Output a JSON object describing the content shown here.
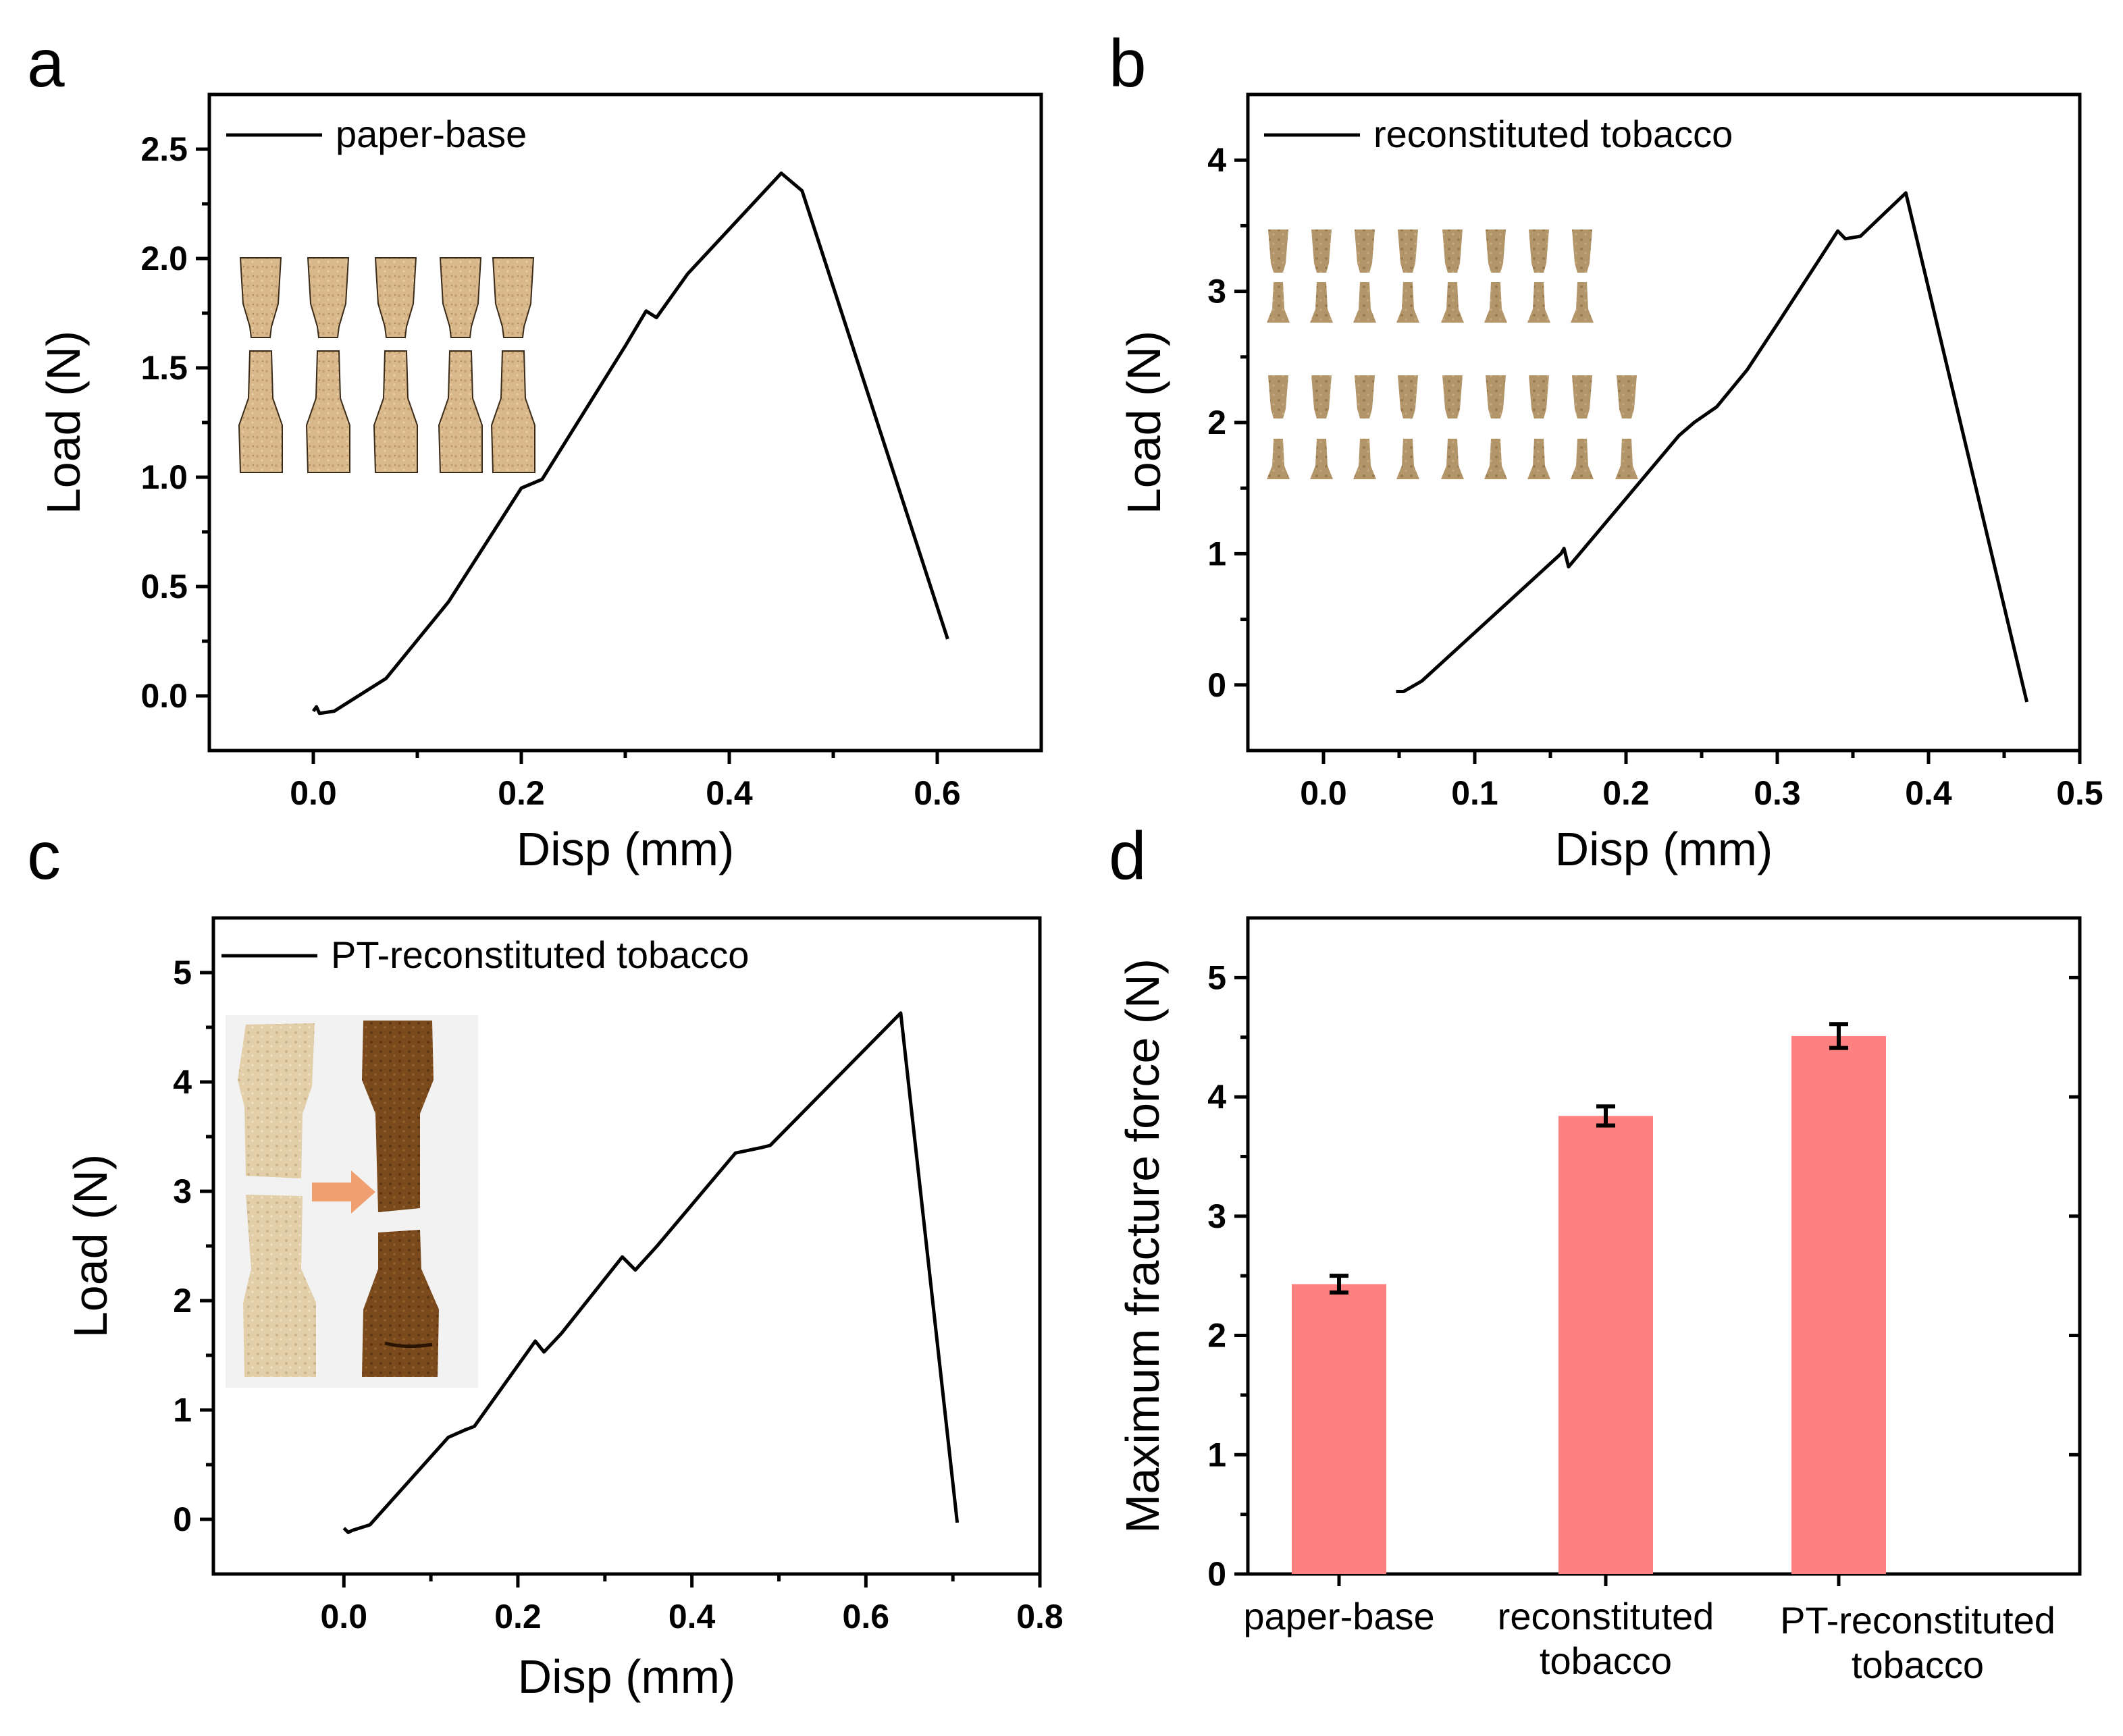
{
  "chart_data": [
    {
      "panel": "a",
      "type": "line",
      "xlabel": "Disp (mm)",
      "ylabel": "Load (N)",
      "xlim": [
        -0.1,
        0.7
      ],
      "ylim": [
        -0.25,
        2.75
      ],
      "xticks": [
        0.0,
        0.2,
        0.4,
        0.6
      ],
      "xtick_labels": [
        "0.0",
        "0.2",
        "0.4",
        "0.6"
      ],
      "yticks": [
        0.0,
        0.5,
        1.0,
        1.5,
        2.0,
        2.5
      ],
      "ytick_labels": [
        "0.0",
        "0.5",
        "1.0",
        "1.5",
        "2.0",
        "2.5"
      ],
      "legend": "paper-base",
      "legend_position": "top-left",
      "inset_photo": "paper-base-specimens",
      "series": [
        {
          "name": "paper-base",
          "x": [
            0.0,
            0.003,
            0.006,
            0.02,
            0.07,
            0.13,
            0.2,
            0.22,
            0.3,
            0.32,
            0.33,
            0.36,
            0.45,
            0.47,
            0.61
          ],
          "y": [
            -0.07,
            -0.05,
            -0.08,
            -0.07,
            0.08,
            0.43,
            0.95,
            0.99,
            1.6,
            1.76,
            1.73,
            1.93,
            2.39,
            2.31,
            0.26
          ]
        }
      ]
    },
    {
      "panel": "b",
      "type": "line",
      "xlabel": "Disp (mm)",
      "ylabel": "Load (N)",
      "xlim": [
        -0.05,
        0.5
      ],
      "ylim": [
        -0.5,
        4.5
      ],
      "xticks": [
        0.0,
        0.1,
        0.2,
        0.3,
        0.4,
        0.5
      ],
      "xtick_labels": [
        "0.0",
        "0.1",
        "0.2",
        "0.3",
        "0.4",
        "0.5"
      ],
      "yticks": [
        0,
        1,
        2,
        3,
        4
      ],
      "ytick_labels": [
        "0",
        "1",
        "2",
        "3",
        "4"
      ],
      "legend": "reconstituted tobacco",
      "legend_position": "top-left",
      "inset_photo": "reconstituted-tobacco-specimens",
      "series": [
        {
          "name": "reconstituted tobacco",
          "x": [
            0.048,
            0.053,
            0.065,
            0.157,
            0.159,
            0.162,
            0.235,
            0.245,
            0.26,
            0.28,
            0.3,
            0.34,
            0.345,
            0.355,
            0.385,
            0.465
          ],
          "y": [
            -0.05,
            -0.05,
            0.03,
            1.0,
            1.04,
            0.9,
            1.9,
            2.0,
            2.12,
            2.4,
            2.75,
            3.46,
            3.4,
            3.42,
            3.75,
            -0.13
          ]
        }
      ]
    },
    {
      "panel": "c",
      "type": "line",
      "xlabel": "Disp (mm)",
      "ylabel": "Load (N)",
      "xlim": [
        -0.15,
        0.8
      ],
      "ylim": [
        -0.5,
        5.5
      ],
      "xticks": [
        0.0,
        0.2,
        0.4,
        0.6,
        0.8
      ],
      "xtick_labels": [
        "0.0",
        "0.2",
        "0.4",
        "0.6",
        "0.8"
      ],
      "yticks": [
        0,
        1,
        2,
        3,
        4,
        5
      ],
      "ytick_labels": [
        "0",
        "1",
        "2",
        "3",
        "4",
        "5"
      ],
      "legend": "PT-reconstituted tobacco",
      "legend_position": "top-left",
      "inset_photo": "pt-treatment-comparison-specimens",
      "series": [
        {
          "name": "PT-reconstituted tobacco",
          "x": [
            0.0,
            0.005,
            0.01,
            0.03,
            0.12,
            0.14,
            0.15,
            0.22,
            0.23,
            0.25,
            0.32,
            0.335,
            0.36,
            0.45,
            0.48,
            0.49,
            0.64,
            0.705
          ],
          "y": [
            -0.08,
            -0.12,
            -0.1,
            -0.05,
            0.75,
            0.82,
            0.85,
            1.63,
            1.53,
            1.7,
            2.4,
            2.28,
            2.5,
            3.35,
            3.4,
            3.42,
            4.63,
            -0.03
          ]
        }
      ]
    },
    {
      "panel": "d",
      "type": "bar",
      "xlabel": "",
      "ylabel": "Maximum fracture force (N)",
      "ylim": [
        0,
        5.5
      ],
      "yticks": [
        0,
        1,
        2,
        3,
        4,
        5
      ],
      "ytick_labels": [
        "0",
        "1",
        "2",
        "3",
        "4",
        "5"
      ],
      "categories": [
        [
          "paper-base"
        ],
        [
          "reconstituted",
          "tobacco"
        ],
        [
          "PT-reconstituted",
          "tobacco"
        ]
      ],
      "values": [
        2.43,
        3.84,
        4.51
      ],
      "errors": [
        0.07,
        0.08,
        0.1
      ],
      "bar_color": "#ff8080"
    }
  ],
  "panel_letters": [
    "a",
    "b",
    "c",
    "d"
  ]
}
